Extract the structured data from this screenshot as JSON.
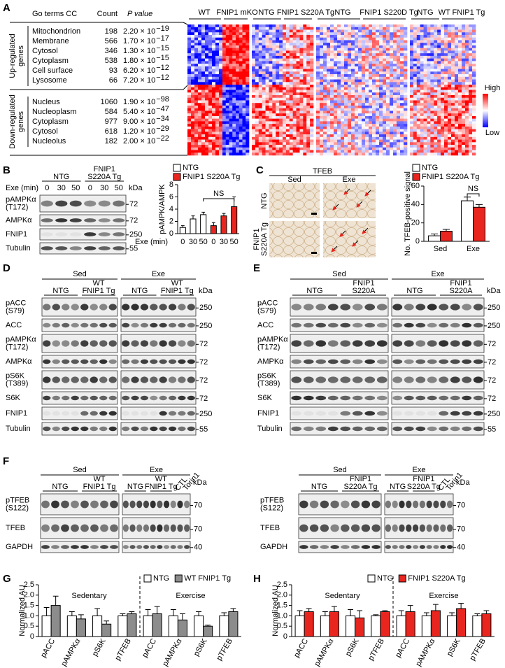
{
  "panel_labels": [
    "A",
    "B",
    "C",
    "D",
    "E",
    "F",
    "G",
    "H"
  ],
  "panel_a": {
    "table": {
      "header": [
        "Go terms CC",
        "Count",
        "P value"
      ],
      "groups": [
        {
          "label": [
            "Up-regulated",
            "genes"
          ],
          "rows": [
            [
              "Mitochondrion",
              198,
              "2.20 × 10",
              "−19"
            ],
            [
              "Membrane",
              566,
              "1.70 × 10",
              "−17"
            ],
            [
              "Cytosol",
              346,
              "1.30 × 10",
              "−15"
            ],
            [
              "Cytoplasm",
              538,
              "1.80 × 10",
              "−15"
            ],
            [
              "Cell surface",
              93,
              "6.20 × 10",
              "−12"
            ],
            [
              "Lysosome",
              66,
              "7.20 × 10",
              "−12"
            ]
          ]
        },
        {
          "label": [
            "Down-regulated",
            "genes"
          ],
          "rows": [
            [
              "Nucleus",
              1060,
              "1.90 × 10",
              "−98"
            ],
            [
              "Nucleoplasm",
              584,
              "5.40 × 10",
              "−47"
            ],
            [
              "Cytoplasm",
              977,
              "9.00 × 10",
              "−34"
            ],
            [
              "Cytosol",
              618,
              "1.20 × 10",
              "−29"
            ],
            [
              "Nucleolus",
              182,
              "2.00 × 10",
              "−22"
            ]
          ]
        }
      ]
    },
    "heatmap": {
      "groups": [
        "WT",
        "FNIP1 mKO",
        "NTG",
        "FNIP1 S220A Tg",
        "NTG",
        "FNIP1 S220D Tg",
        "NTG",
        "WT FNIP1 Tg"
      ],
      "legend": {
        "high": "High",
        "low": "Low"
      }
    }
  },
  "panel_c": {
    "title": "TFEB",
    "columns": [
      "Sed",
      "Exe"
    ],
    "rows": [
      [
        "NTG"
      ],
      [
        "FNIP1",
        "S220A Tg"
      ]
    ]
  },
  "blots": [
    {
      "conditions": [
        {
          "groups": [
            [
              "NTG"
            ],
            [
              "FNIP1",
              "S220A Tg"
            ]
          ]
        }
      ],
      "lane_title": "Exe (min)",
      "lanes": [
        0,
        30,
        50,
        0,
        30,
        50
      ],
      "unit": "kDa",
      "rows": [
        {
          "label": [
            "pAMPKα",
            "(T172)"
          ],
          "kda": 72
        },
        {
          "label": [
            "AMPKα"
          ],
          "kda": 72
        },
        {
          "label": [
            "FNIP1"
          ],
          "kda": 250
        },
        {
          "label": [
            "Tubulin"
          ],
          "kda": 55
        }
      ]
    },
    {
      "conditions": [
        {
          "label": "Sed",
          "groups": [
            [
              "NTG"
            ],
            [
              "WT",
              "FNIP1 Tg"
            ]
          ]
        },
        {
          "label": "Exe",
          "groups": [
            [
              "NTG"
            ],
            [
              "WT",
              "FNIP1 Tg"
            ]
          ]
        }
      ],
      "unit": "kDa",
      "rows": [
        {
          "label": [
            "pACC",
            "(S79)"
          ],
          "kda": 250
        },
        {
          "label": [
            "ACC"
          ],
          "kda": 250
        },
        {
          "label": [
            "pAMPKα",
            "(T172)"
          ],
          "kda": 72
        },
        {
          "label": [
            "AMPKα"
          ],
          "kda": 72
        },
        {
          "label": [
            "pS6K",
            "(T389)"
          ],
          "kda": 72
        },
        {
          "label": [
            "S6K"
          ],
          "kda": 72
        },
        {
          "label": [
            "FNIP1"
          ],
          "kda": 250
        },
        {
          "label": [
            "Tubulin"
          ],
          "kda": 55
        }
      ]
    },
    {
      "conditions": [
        {
          "label": "Sed",
          "groups": [
            [
              "NTG"
            ],
            [
              "FNIP1",
              "S220A"
            ]
          ]
        },
        {
          "label": "Exe",
          "groups": [
            [
              "NTG"
            ],
            [
              "FNIP1",
              "S220A"
            ]
          ]
        }
      ],
      "unit": "kDa",
      "rows": [
        {
          "label": [
            "pACC",
            "(S79)"
          ],
          "kda": 250
        },
        {
          "label": [
            "ACC"
          ],
          "kda": 250
        },
        {
          "label": [
            "pAMPKα",
            "(T172)"
          ],
          "kda": 72
        },
        {
          "label": [
            "AMPKα"
          ],
          "kda": 72
        },
        {
          "label": [
            "pS6K",
            "(T389)"
          ],
          "kda": 72
        },
        {
          "label": [
            "S6K"
          ],
          "kda": 72
        },
        {
          "label": [
            "FNIP1"
          ],
          "kda": 250
        },
        {
          "label": [
            "Tubulin"
          ],
          "kda": 55
        }
      ]
    },
    {
      "conditions": [
        {
          "label": "Sed",
          "groups": [
            [
              "NTG"
            ],
            [
              "WT",
              "FNIP1 Tg"
            ]
          ]
        },
        {
          "label": "Exe",
          "groups": [
            [
              "NTG"
            ],
            [
              "WT",
              "FNIP1 Tg"
            ]
          ],
          "controls": [
            "CTL",
            "Torin1"
          ]
        }
      ],
      "unit": "kDa",
      "rows": [
        {
          "label": [
            "pTFEB",
            "(S122)"
          ],
          "kda": 70
        },
        {
          "label": [
            "TFEB"
          ],
          "kda": 70
        },
        {
          "label": [
            "GAPDH"
          ],
          "kda": 40
        }
      ]
    },
    {
      "conditions": [
        {
          "label": "Sed",
          "groups": [
            [
              "NTG"
            ],
            [
              "FNIP1",
              "S220A Tg"
            ]
          ]
        },
        {
          "label": "Exe",
          "groups": [
            [
              "NTG"
            ],
            [
              "FNIP1",
              "S220A Tg"
            ]
          ],
          "controls": [
            "CTL",
            "Torin1"
          ]
        }
      ],
      "unit": "kDa",
      "rows": [
        {
          "label": [
            "pTFEB",
            "(S122)"
          ],
          "kda": 70
        },
        {
          "label": [
            "TFEB"
          ],
          "kda": 70
        },
        {
          "label": [
            "GAPDH"
          ],
          "kda": 40
        }
      ]
    }
  ],
  "chart_data": [
    {
      "type": "bar",
      "ylabel": "pAMPK/AMPK",
      "xlabel": "Exe (min)",
      "categories": [
        0,
        30,
        50,
        0,
        30,
        50
      ],
      "ylim": [
        0,
        8
      ],
      "yticks": [
        0,
        2,
        4,
        6,
        8
      ],
      "annotation": "NS",
      "series": [
        {
          "name": "NTG",
          "color": "#ffffff",
          "values": [
            1.0,
            2.4,
            3.1,
            null,
            null,
            null
          ],
          "errors": [
            0.3,
            0.5,
            0.4,
            null,
            null,
            null
          ]
        },
        {
          "name": "FNIP1 S220A Tg",
          "color": "#e8251e",
          "values": [
            null,
            null,
            null,
            1.3,
            2.9,
            4.4
          ],
          "errors": [
            null,
            null,
            null,
            0.5,
            0.4,
            1.6
          ]
        }
      ]
    },
    {
      "type": "bar",
      "ylabel": "No. TFEB-positive signal",
      "categories": [
        "Sed",
        "Exe"
      ],
      "ylim": [
        0,
        60
      ],
      "yticks": [
        0,
        20,
        40,
        60
      ],
      "annotation": "NS",
      "series": [
        {
          "name": "NTG",
          "color": "#ffffff",
          "values": [
            6,
            44
          ],
          "errors": [
            2,
            4
          ]
        },
        {
          "name": "FNIP1 S220A Tg",
          "color": "#e8251e",
          "values": [
            11,
            37
          ],
          "errors": [
            2,
            3
          ]
        }
      ]
    },
    {
      "type": "bar",
      "ylabel": "Normalized AU",
      "categories": [
        "pACC",
        "pAMPKα",
        "pS6K",
        "pTFEB",
        "pACC",
        "pAMPKα",
        "pS6K",
        "pTFEB"
      ],
      "group_labels": [
        "Sedentary",
        "Exercise"
      ],
      "ylim": [
        0,
        2.5
      ],
      "yticks": [
        0,
        0.5,
        {
          "value": 1,
          "label": "1.0"
        },
        1.5,
        {
          "value": 2,
          "label": "2.0"
        },
        2.5
      ],
      "series": [
        {
          "name": "NTG",
          "color": "#ffffff",
          "values": [
            1,
            1,
            1,
            1,
            1,
            1,
            1,
            1
          ],
          "errors": [
            0.4,
            0.2,
            0.35,
            0.1,
            0.3,
            0.3,
            0.2,
            0.15
          ]
        },
        {
          "name": "WT FNIP1 Tg",
          "color": "#8c8c8c",
          "values": [
            1.5,
            0.85,
            0.6,
            1.1,
            1.1,
            0.8,
            0.5,
            1.2
          ],
          "errors": [
            0.45,
            0.2,
            0.15,
            0.1,
            0.35,
            0.3,
            0.05,
            0.15
          ]
        }
      ]
    },
    {
      "type": "bar",
      "ylabel": "Normalized AU",
      "categories": [
        "pACC",
        "pAMPKα",
        "pS6K",
        "pTFEB",
        "pACC",
        "pAMPKα",
        "pS6K",
        "pTFEB"
      ],
      "group_labels": [
        "Sedentary",
        "Exercise"
      ],
      "ylim": [
        0,
        2.5
      ],
      "yticks": [
        0,
        0.5,
        {
          "value": 1,
          "label": "1.0"
        },
        1.5,
        {
          "value": 2,
          "label": "2.0"
        },
        2.5
      ],
      "series": [
        {
          "name": "NTG",
          "color": "#ffffff",
          "values": [
            1,
            1,
            1,
            1,
            1,
            1,
            1,
            1
          ],
          "errors": [
            0.25,
            0.2,
            0.3,
            0.05,
            0.25,
            0.15,
            0.15,
            0.1
          ]
        },
        {
          "name": "FNIP1 S220A Tg",
          "color": "#e8251e",
          "values": [
            1.2,
            1.2,
            0.9,
            1.2,
            1.2,
            1.25,
            1.35,
            1.1
          ],
          "errors": [
            0.15,
            0.25,
            0.35,
            0.05,
            0.3,
            0.3,
            0.25,
            0.15
          ]
        }
      ]
    }
  ]
}
